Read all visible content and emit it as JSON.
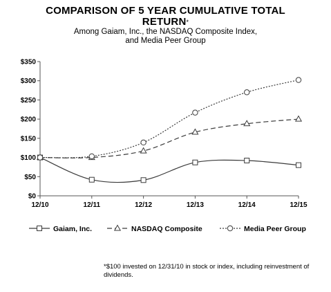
{
  "title_lines": [
    "COMPARISON OF 5 YEAR CUMULATIVE TOTAL",
    "RETURN"
  ],
  "title_mark": "*",
  "subtitle_lines": [
    "Among Gaiam, Inc., the NASDAQ Composite Index,",
    "and Media Peer Group"
  ],
  "footnote": "*$100 invested on 12/31/10 in stock or index, including reinvestment of dividends.",
  "chart_data": {
    "type": "line",
    "title": "COMPARISON OF 5 YEAR CUMULATIVE TOTAL RETURN*",
    "categories": [
      "12/10",
      "12/11",
      "12/12",
      "12/13",
      "12/14",
      "12/15"
    ],
    "y_ticks": [
      "$0",
      "$50",
      "$100",
      "$150",
      "$200",
      "$250",
      "$300",
      "$350"
    ],
    "ylim": [
      0,
      350
    ],
    "grid": false,
    "legend_position": "bottom",
    "series": [
      {
        "name": "Gaiam, Inc.",
        "marker": "square",
        "line_style": "solid",
        "values": [
          100,
          42,
          41,
          87,
          92,
          80
        ]
      },
      {
        "name": "NASDAQ Composite",
        "marker": "triangle",
        "line_style": "dashed",
        "values": [
          100,
          100,
          117,
          166,
          188,
          200
        ]
      },
      {
        "name": "Media Peer Group",
        "marker": "circle",
        "line_style": "dotted",
        "values": [
          100,
          103,
          139,
          217,
          270,
          302
        ]
      }
    ],
    "colors": {
      "line": "#3a3a3a",
      "axis": "#555555",
      "marker_fill": "#ffffff"
    }
  }
}
